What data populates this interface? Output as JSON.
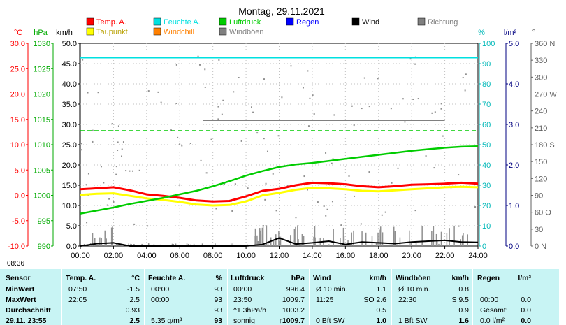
{
  "chart_data": {
    "type": "line",
    "title": "Montag, 29.11.2021",
    "x_range": [
      "00:00",
      "24:00"
    ],
    "x_ticks": [
      "00:00",
      "02:00",
      "04:00",
      "06:00",
      "08:00",
      "10:00",
      "12:00",
      "14:00",
      "16:00",
      "18:00",
      "20:00",
      "22:00",
      "24:00"
    ],
    "grid": true,
    "axes": {
      "temp_c": {
        "unit": "°C",
        "range": [
          -10,
          30
        ],
        "ticks": [
          "-10.0",
          "-5.0",
          "0.0",
          "5.0",
          "10.0",
          "15.0",
          "20.0",
          "25.0",
          "30.0"
        ]
      },
      "pressure_hpa": {
        "unit": "hPa",
        "range": [
          990,
          1030
        ],
        "ticks": [
          "990",
          "995",
          "1000",
          "1005",
          "1010",
          "1015",
          "1020",
          "1025",
          "1030"
        ]
      },
      "wind_kmh": {
        "unit": "km/h",
        "range": [
          0,
          50
        ],
        "ticks": [
          "0.0",
          "5.0",
          "10.0",
          "15.0",
          "20.0",
          "25.0",
          "30.0",
          "35.0",
          "40.0",
          "45.0",
          "50.0"
        ]
      },
      "humidity_pct": {
        "unit": "%",
        "range": [
          0,
          100
        ],
        "ticks": [
          "0",
          "10",
          "20",
          "30",
          "40",
          "50",
          "60",
          "70",
          "80",
          "90",
          "100"
        ]
      },
      "rain_lm2": {
        "unit": "l/m²",
        "range": [
          0,
          5
        ],
        "ticks": [
          "0.0",
          "1.0",
          "2.0",
          "3.0",
          "4.0",
          "5.0"
        ]
      },
      "direction_deg": {
        "unit": "°",
        "range": [
          0,
          360
        ],
        "ticks": [
          "0 N",
          "30",
          "60 O",
          "90",
          "120",
          "150",
          "180 S",
          "210",
          "240",
          "270 W",
          "300",
          "330",
          "360 N"
        ]
      }
    },
    "legend": [
      {
        "name": "Temp. A.",
        "color": "#ff0000"
      },
      {
        "name": "Feuchte A.",
        "color": "#00e0e0"
      },
      {
        "name": "Luftdruck",
        "color": "#00cc00"
      },
      {
        "name": "Regen",
        "color": "#0000ff"
      },
      {
        "name": "Wind",
        "color": "#000000"
      },
      {
        "name": "Richtung",
        "color": "#808080"
      },
      {
        "name": "Taupunkt",
        "color": "#ffff00"
      },
      {
        "name": "Windchill",
        "color": "#ff8000"
      },
      {
        "name": "Windböen",
        "color": "#808080"
      }
    ],
    "series": [
      {
        "name": "Temp. A.",
        "axis": "temp_c",
        "color": "#ff0000",
        "x": [
          0,
          1,
          2,
          3,
          4,
          5,
          6,
          7,
          8,
          9,
          10,
          11,
          12,
          13,
          14,
          15,
          16,
          17,
          18,
          19,
          20,
          21,
          22,
          23,
          24
        ],
        "values": [
          1.2,
          1.4,
          1.6,
          1.0,
          0.2,
          -0.1,
          -0.5,
          -1.0,
          -1.2,
          -1.1,
          -0.2,
          0.9,
          1.3,
          2.0,
          2.5,
          2.4,
          2.2,
          1.8,
          1.6,
          1.8,
          2.1,
          2.2,
          2.3,
          2.5,
          2.3
        ]
      },
      {
        "name": "Taupunkt",
        "axis": "temp_c",
        "color": "#ffff00",
        "x": [
          0,
          1,
          2,
          3,
          4,
          5,
          6,
          7,
          8,
          9,
          10,
          11,
          12,
          13,
          14,
          15,
          16,
          17,
          18,
          19,
          20,
          21,
          22,
          23,
          24
        ],
        "values": [
          0.1,
          0.3,
          0.4,
          -0.1,
          -0.6,
          -0.9,
          -1.3,
          -1.8,
          -2.0,
          -1.9,
          -1.2,
          0.0,
          0.5,
          1.1,
          1.5,
          1.4,
          1.2,
          0.9,
          0.8,
          1.0,
          1.2,
          1.4,
          1.6,
          1.7,
          1.6
        ]
      },
      {
        "name": "Luftdruck",
        "axis": "pressure_hpa",
        "color": "#00cc00",
        "x": [
          0,
          1,
          2,
          3,
          4,
          5,
          6,
          7,
          8,
          9,
          10,
          11,
          12,
          13,
          14,
          15,
          16,
          17,
          18,
          19,
          20,
          21,
          22,
          23,
          24
        ],
        "values": [
          996.4,
          997.0,
          997.6,
          998.3,
          998.9,
          999.5,
          1000.2,
          1000.9,
          1001.8,
          1002.8,
          1003.9,
          1004.8,
          1005.6,
          1006.1,
          1006.4,
          1006.8,
          1007.2,
          1007.6,
          1008.0,
          1008.4,
          1008.8,
          1009.1,
          1009.4,
          1009.6,
          1009.7
        ]
      },
      {
        "name": "Feuchte A.",
        "axis": "humidity_pct",
        "color": "#00e0e0",
        "x": [
          0,
          24
        ],
        "values": [
          93,
          93
        ]
      },
      {
        "name": "Wind",
        "axis": "wind_kmh",
        "color": "#000000",
        "x": [
          0,
          1,
          2,
          3,
          4,
          5,
          6,
          7,
          8,
          9,
          10,
          11,
          12,
          13,
          14,
          15,
          16,
          17,
          18,
          19,
          20,
          21,
          22,
          23,
          24
        ],
        "values": [
          0,
          0.6,
          0.8,
          0,
          0,
          0,
          0,
          0,
          0,
          0,
          0,
          0.4,
          2.0,
          0.5,
          0.8,
          1.2,
          0.4,
          1.0,
          0.8,
          0.6,
          1.0,
          1.2,
          1.4,
          1.0,
          0.9
        ]
      }
    ],
    "reference_lines": [
      {
        "axis": "humidity_pct",
        "value": 57,
        "style": "dashed",
        "color": "#00cc00"
      }
    ]
  },
  "time_row": {
    "now": "08:36"
  },
  "stats": {
    "headers": {
      "sensor": "Sensor",
      "temp": "Temp. A.",
      "temp_unit": "°C",
      "hum": "Feuchte A.",
      "hum_unit": "%",
      "press": "Luftdruck",
      "press_unit": "hPa",
      "wind": "Wind",
      "wind_unit": "km/h",
      "gust": "Windböen",
      "gust_unit": "km/h",
      "rain": "Regen",
      "rain_unit": "l/m²"
    },
    "rows": [
      {
        "label": "MinWert",
        "temp_time": "07:50",
        "temp_val": "-1.5",
        "hum_time": "00:00",
        "hum_val": "93",
        "press_time": "00:00",
        "press_val": "996.4",
        "wind_time": "Ø 10 min.",
        "wind_val": "1.1",
        "gust_time": "Ø 10 min.",
        "gust_val": "0.8",
        "rain_time": "",
        "rain_val": ""
      },
      {
        "label": "MaxWert",
        "temp_time": "22:05",
        "temp_val": "2.5",
        "hum_time": "00:00",
        "hum_val": "93",
        "press_time": "23:50",
        "press_val": "1009.7",
        "wind_time": "11:25",
        "wind_val": "SO 2.6",
        "gust_time": "22:30",
        "gust_val": "S 9.5",
        "rain_time": "00:00",
        "rain_val": "0.0"
      },
      {
        "label": "Durchschnitt",
        "temp_time": "",
        "temp_val": "0.93",
        "hum_time": "",
        "hum_val": "93",
        "press_time": "^1.3hPa/h",
        "press_val": "1003.2",
        "wind_time": "",
        "wind_val": "0.5",
        "gust_time": "",
        "gust_val": "0.9",
        "rain_time": "Gesamt:",
        "rain_val": "0.0"
      },
      {
        "label": "29.11. 23:55",
        "temp_time": "",
        "temp_val": "2.5",
        "hum_time": "5.35 g/m³",
        "hum_val": "93",
        "press_time": "sonnig",
        "press_val": "↑1009.7",
        "wind_time": "0 Bft SW",
        "wind_val": "1.0",
        "gust_time": "1 Bft SW",
        "gust_val": "1.6",
        "rain_time": "0.0 l/m²",
        "rain_val": "0.0"
      }
    ]
  }
}
